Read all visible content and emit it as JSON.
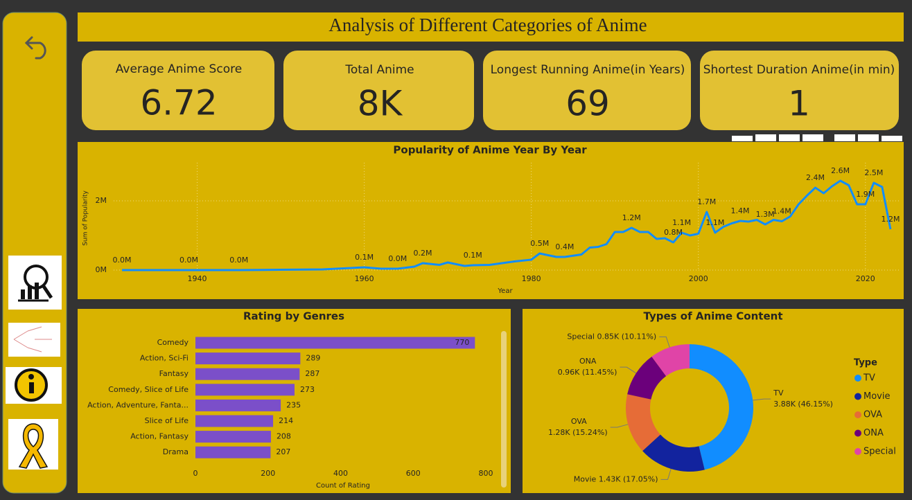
{
  "header": {
    "title": "Analysis of Different Categories of Anime"
  },
  "kpis": [
    {
      "label": "Average Anime Score",
      "value": 6.72
    },
    {
      "label": "Total Anime",
      "value": "8K"
    },
    {
      "label": "Longest Running Anime(in Years)",
      "value": 69
    },
    {
      "label": "Shortest Duration Anime(in min)",
      "value": 1
    }
  ],
  "chart_data": [
    {
      "type": "line",
      "title": "Popularity of Anime Year By Year",
      "x_label": "Year",
      "y_label": "Sum of Popularity",
      "x": [
        1931,
        1935,
        1939,
        1945,
        1950,
        1955,
        1960,
        1962,
        1964,
        1966,
        1967,
        1969,
        1970,
        1972,
        1973,
        1975,
        1978,
        1980,
        1981,
        1983,
        1984,
        1986,
        1987,
        1988,
        1989,
        1990,
        1991,
        1992,
        1993,
        1994,
        1995,
        1996,
        1997,
        1998,
        1999,
        2000,
        2001,
        2002,
        2003,
        2004,
        2005,
        2006,
        2007,
        2008,
        2009,
        2010,
        2011,
        2012,
        2013,
        2014,
        2015,
        2016,
        2017,
        2018,
        2019,
        2020,
        2021,
        2022,
        2023
      ],
      "values": [
        0,
        0,
        0,
        0,
        10000,
        20000,
        80000,
        40000,
        40000,
        100000,
        200000,
        150000,
        220000,
        120000,
        140000,
        150000,
        250000,
        300000,
        480000,
        380000,
        380000,
        450000,
        650000,
        670000,
        750000,
        1100000,
        1100000,
        1220000,
        1100000,
        1100000,
        900000,
        920000,
        800000,
        1080000,
        1000000,
        1050000,
        1680000,
        1080000,
        1250000,
        1350000,
        1420000,
        1400000,
        1450000,
        1320000,
        1450000,
        1410000,
        1550000,
        1900000,
        2150000,
        2380000,
        2220000,
        2420000,
        2580000,
        2450000,
        1900000,
        1900000,
        2520000,
        2400000,
        1180000
      ],
      "value_labels": [
        "0.0M",
        null,
        "0.0M",
        "0.0M",
        null,
        null,
        "0.1M",
        null,
        "0.0M",
        null,
        "0.2M",
        null,
        null,
        null,
        "0.1M",
        null,
        null,
        null,
        "0.5M",
        null,
        "0.4M",
        null,
        null,
        null,
        null,
        null,
        null,
        "1.2M",
        null,
        null,
        null,
        null,
        "0.8M",
        "1.1M",
        null,
        null,
        "1.7M",
        "1.1M",
        null,
        null,
        "1.4M",
        null,
        null,
        "1.3M",
        null,
        "1.4M",
        null,
        null,
        null,
        "2.4M",
        null,
        null,
        "2.6M",
        null,
        null,
        "1.9M",
        "2.5M",
        null,
        "1.2M"
      ],
      "color": "#118dff",
      "xlim": [
        1930,
        2024
      ],
      "xticks": [
        1940,
        1960,
        1980,
        2000,
        2020
      ],
      "ylim": [
        0,
        3100000
      ],
      "yticks": [
        {
          "value": 0,
          "label": "0M"
        },
        {
          "value": 2000000,
          "label": "2M"
        }
      ],
      "grid": true
    },
    {
      "type": "bar",
      "orientation": "horizontal",
      "title": "Rating by Genres",
      "x_label": "Count of Rating",
      "categories": [
        "Comedy",
        "Action, Sci-Fi",
        "Fantasy",
        "Comedy, Slice of Life",
        "Action, Adventure, Fanta...",
        "Slice of Life",
        "Action, Fantasy",
        "Drama"
      ],
      "values": [
        770,
        289,
        287,
        273,
        235,
        214,
        208,
        207
      ],
      "color": "#7b4fc9",
      "xlim": [
        0,
        840
      ],
      "xticks": [
        0,
        200,
        400,
        600,
        800
      ]
    },
    {
      "type": "donut",
      "title": "Types of Anime Content",
      "legend_title": "Type",
      "legend": "right",
      "categories": [
        "TV",
        "Movie",
        "OVA",
        "ONA",
        "Special"
      ],
      "values": [
        3880,
        1430,
        1280,
        960,
        850
      ],
      "value_labels": [
        "3.88K (46.15%)",
        "1.43K (17.05%)",
        "1.28K (15.24%)",
        "0.96K (11.45%)",
        "0.85K (10.11%)"
      ],
      "colors": [
        "#118dff",
        "#12239e",
        "#e66c37",
        "#6b007b",
        "#e044a7"
      ]
    }
  ]
}
